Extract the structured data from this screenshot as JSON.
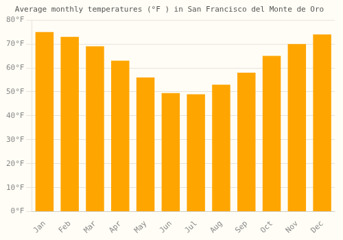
{
  "chart_data": {
    "type": "bar",
    "title": "Average monthly temperatures (°F ) in San Francisco del Monte de Oro",
    "categories": [
      "Jan",
      "Feb",
      "Mar",
      "Apr",
      "May",
      "Jun",
      "Jul",
      "Aug",
      "Sep",
      "Oct",
      "Nov",
      "Dec"
    ],
    "values": [
      75,
      73,
      69,
      63,
      56,
      49.5,
      49,
      53,
      58,
      65,
      70,
      74
    ],
    "color": "#FFA500",
    "ylim": [
      0,
      80
    ],
    "yticks": [
      {
        "value": 0,
        "label": "0°F"
      },
      {
        "value": 10,
        "label": "10°F"
      },
      {
        "value": 20,
        "label": "20°F"
      },
      {
        "value": 30,
        "label": "30°F"
      },
      {
        "value": 40,
        "label": "40°F"
      },
      {
        "value": 50,
        "label": "50°F"
      },
      {
        "value": 60,
        "label": "60°F"
      },
      {
        "value": 70,
        "label": "70°F"
      },
      {
        "value": 80,
        "label": "80°F"
      }
    ],
    "grid": true
  }
}
